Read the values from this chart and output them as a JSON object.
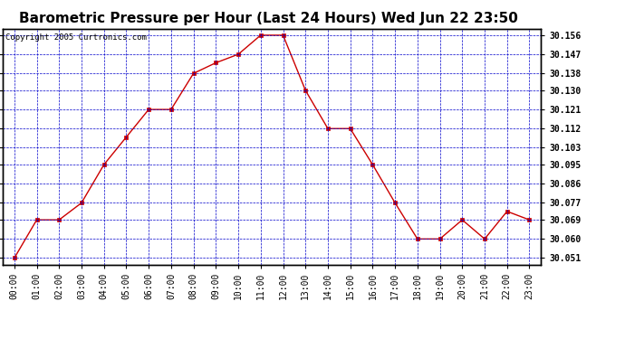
{
  "title": "Barometric Pressure per Hour (Last 24 Hours) Wed Jun 22 23:50",
  "copyright": "Copyright 2005 Curtronics.com",
  "x_labels": [
    "00:00",
    "01:00",
    "02:00",
    "03:00",
    "04:00",
    "05:00",
    "06:00",
    "07:00",
    "08:00",
    "09:00",
    "10:00",
    "11:00",
    "12:00",
    "13:00",
    "14:00",
    "15:00",
    "16:00",
    "17:00",
    "18:00",
    "19:00",
    "20:00",
    "21:00",
    "22:00",
    "23:00"
  ],
  "y_values": [
    30.051,
    30.069,
    30.069,
    30.077,
    30.095,
    30.108,
    30.121,
    30.121,
    30.138,
    30.143,
    30.147,
    30.156,
    30.156,
    30.13,
    30.112,
    30.112,
    30.095,
    30.077,
    30.06,
    30.06,
    30.069,
    30.06,
    30.073,
    30.069
  ],
  "y_ticks": [
    30.051,
    30.06,
    30.069,
    30.077,
    30.086,
    30.095,
    30.103,
    30.112,
    30.121,
    30.13,
    30.138,
    30.147,
    30.156
  ],
  "y_min": 30.048,
  "y_max": 30.159,
  "line_color": "#cc0000",
  "marker_color": "#cc0000",
  "bg_color": "#ffffff",
  "plot_bg_color": "#ffffff",
  "grid_color": "#0000cc",
  "title_fontsize": 11,
  "copyright_fontsize": 6.5,
  "tick_fontsize": 7,
  "xlabel_fontsize": 7
}
